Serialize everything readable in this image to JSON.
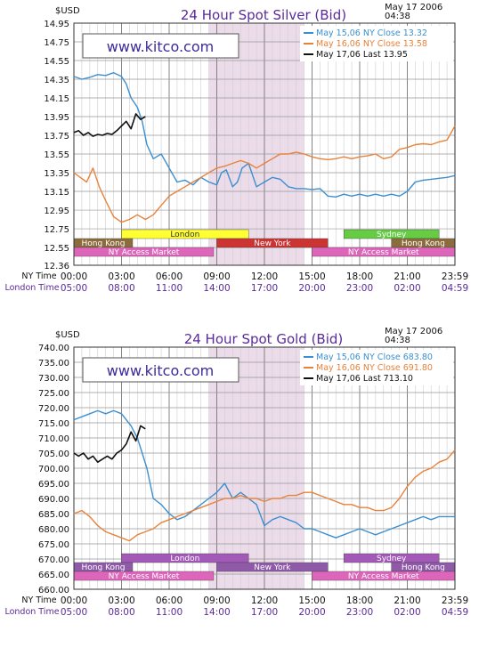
{
  "chart_data": [
    {
      "type": "line",
      "title": "24 Hour Spot Silver (Bid)",
      "date_stamp": "May 17 2006",
      "time_stamp": "04:38",
      "watermark": "www.kitco.com",
      "ylabel": "$USD",
      "ylim": [
        12.36,
        14.95
      ],
      "yticks": [
        "14.95",
        "14.75",
        "14.55",
        "14.35",
        "14.15",
        "13.95",
        "13.75",
        "13.55",
        "13.35",
        "13.15",
        "12.95",
        "12.75",
        "12.55",
        "12.36"
      ],
      "ytick_values": [
        14.95,
        14.75,
        14.55,
        14.35,
        14.15,
        13.95,
        13.75,
        13.55,
        13.35,
        13.15,
        12.95,
        12.75,
        12.55,
        12.36
      ],
      "x_axis_label_ny": "NY Time",
      "x_axis_label_london": "London Time",
      "xticks_ny": [
        "00:00",
        "03:00",
        "06:00",
        "09:00",
        "12:00",
        "15:00",
        "18:00",
        "21:00",
        "23:59"
      ],
      "xticks_london": [
        "05:00",
        "08:00",
        "11:00",
        "14:00",
        "17:00",
        "20:00",
        "23:00",
        "02:00",
        "04:59"
      ],
      "legend": [
        {
          "label": "May 15,06 NY Close 13.32",
          "color": "#3b8fd0"
        },
        {
          "label": "May 16,06 NY Close 13.58",
          "color": "#e8823a"
        },
        {
          "label": "May 17,06 Last 13.95",
          "color": "#111111"
        }
      ],
      "series": [
        {
          "name": "May 15,06",
          "color": "#3b8fd0",
          "x": [
            0,
            0.5,
            1,
            1.5,
            2,
            2.5,
            3,
            3.3,
            3.6,
            4,
            4.3,
            4.6,
            5,
            5.5,
            6,
            6.5,
            7,
            7.5,
            8,
            8.5,
            9,
            9.3,
            9.6,
            10,
            10.3,
            10.6,
            11,
            11.5,
            12,
            12.5,
            13,
            13.5,
            14,
            14.5,
            15,
            15.5,
            16,
            16.5,
            17,
            17.5,
            18,
            18.5,
            19,
            19.5,
            20,
            20.5,
            21,
            21.5,
            22,
            22.5,
            23,
            23.5,
            24
          ],
          "y": [
            14.38,
            14.35,
            14.37,
            14.4,
            14.39,
            14.42,
            14.38,
            14.3,
            14.15,
            14.05,
            13.9,
            13.65,
            13.5,
            13.55,
            13.4,
            13.25,
            13.27,
            13.22,
            13.3,
            13.25,
            13.22,
            13.35,
            13.38,
            13.2,
            13.25,
            13.4,
            13.45,
            13.2,
            13.25,
            13.3,
            13.28,
            13.2,
            13.18,
            13.18,
            13.17,
            13.18,
            13.1,
            13.09,
            13.12,
            13.1,
            13.12,
            13.1,
            13.12,
            13.1,
            13.12,
            13.1,
            13.15,
            13.25,
            13.27,
            13.28,
            13.29,
            13.3,
            13.32
          ]
        },
        {
          "name": "May 16,06",
          "color": "#e8823a",
          "x": [
            0,
            0.4,
            0.8,
            1.2,
            1.6,
            2,
            2.5,
            3,
            3.5,
            4,
            4.5,
            5,
            5.5,
            6,
            6.5,
            7,
            7.5,
            8,
            8.5,
            9,
            9.5,
            10,
            10.5,
            11,
            11.5,
            12,
            12.5,
            13,
            13.5,
            14,
            14.5,
            15,
            15.5,
            16,
            16.5,
            17,
            17.5,
            18,
            18.5,
            19,
            19.5,
            20,
            20.5,
            21,
            21.5,
            22,
            22.5,
            23,
            23.5,
            24
          ],
          "y": [
            13.35,
            13.3,
            13.25,
            13.4,
            13.2,
            13.05,
            12.88,
            12.82,
            12.85,
            12.9,
            12.85,
            12.9,
            13.0,
            13.1,
            13.15,
            13.2,
            13.25,
            13.3,
            13.35,
            13.4,
            13.42,
            13.45,
            13.48,
            13.45,
            13.4,
            13.45,
            13.5,
            13.55,
            13.55,
            13.57,
            13.55,
            13.52,
            13.5,
            13.49,
            13.5,
            13.52,
            13.5,
            13.52,
            13.53,
            13.55,
            13.5,
            13.52,
            13.6,
            13.62,
            13.65,
            13.66,
            13.65,
            13.68,
            13.7,
            13.85
          ]
        },
        {
          "name": "May 17,06",
          "color": "#111111",
          "x": [
            0,
            0.3,
            0.6,
            0.9,
            1.2,
            1.5,
            1.8,
            2.1,
            2.4,
            2.7,
            3.0,
            3.3,
            3.6,
            3.9,
            4.2,
            4.5
          ],
          "y": [
            13.78,
            13.8,
            13.75,
            13.78,
            13.74,
            13.76,
            13.75,
            13.77,
            13.76,
            13.8,
            13.85,
            13.9,
            13.82,
            13.98,
            13.92,
            13.95
          ]
        }
      ],
      "sessions": [
        {
          "label": "London",
          "start": 3.0,
          "end": 11.0,
          "row": 1,
          "color": "#ffff33"
        },
        {
          "label": "New York",
          "start": 9.0,
          "end": 16.0,
          "row": 2,
          "color": "#cc3333"
        },
        {
          "label": "Sydney",
          "start": 17.0,
          "end": 23.0,
          "row": 1,
          "color": "#66cc44"
        },
        {
          "label": "Hong Kong",
          "start": 0.0,
          "end": 3.7,
          "row": 2,
          "color": "#8c6b3c"
        },
        {
          "label": "Hong Kong",
          "start": 20.0,
          "end": 24.0,
          "row": 2,
          "color": "#8c6b3c"
        },
        {
          "label": "NY Access Market",
          "start": 0.0,
          "end": 8.8,
          "row": 3,
          "color": "#dd66bb"
        },
        {
          "label": "NY Access Market",
          "start": 15.0,
          "end": 24.0,
          "row": 3,
          "color": "#dd66bb"
        }
      ],
      "shaded_x": [
        8.5,
        14.5
      ]
    },
    {
      "type": "line",
      "title": "24 Hour Spot Gold (Bid)",
      "date_stamp": "May 17 2006",
      "time_stamp": "04:38",
      "watermark": "www.kitco.com",
      "ylabel": "$USD",
      "ylim": [
        660,
        740
      ],
      "yticks": [
        "740.00",
        "735.00",
        "730.00",
        "725.00",
        "720.00",
        "715.00",
        "710.00",
        "705.00",
        "700.00",
        "695.00",
        "690.00",
        "685.00",
        "680.00",
        "675.00",
        "670.00",
        "665.00",
        "660.00"
      ],
      "ytick_values": [
        740,
        735,
        730,
        725,
        720,
        715,
        710,
        705,
        700,
        695,
        690,
        685,
        680,
        675,
        670,
        665,
        660
      ],
      "x_axis_label_ny": "NY Time",
      "x_axis_label_london": "London Time",
      "xticks_ny": [
        "00:00",
        "03:00",
        "06:00",
        "09:00",
        "12:00",
        "15:00",
        "18:00",
        "21:00",
        "23:59"
      ],
      "xticks_london": [
        "05:00",
        "08:00",
        "11:00",
        "14:00",
        "17:00",
        "20:00",
        "23:00",
        "02:00",
        "04:59"
      ],
      "legend": [
        {
          "label": "May 15,06 NY Close 683.80",
          "color": "#3b8fd0"
        },
        {
          "label": "May 16,06 NY Close 691.80",
          "color": "#e8823a"
        },
        {
          "label": "May 17,06 Last 713.10",
          "color": "#111111"
        }
      ],
      "series": [
        {
          "name": "May 15,06",
          "color": "#3b8fd0",
          "x": [
            0,
            0.5,
            1,
            1.5,
            2,
            2.5,
            3,
            3.3,
            3.6,
            4,
            4.3,
            4.6,
            5,
            5.5,
            6,
            6.5,
            7,
            7.5,
            8,
            8.5,
            9,
            9.5,
            10,
            10.5,
            11,
            11.5,
            12,
            12.5,
            13,
            13.5,
            14,
            14.5,
            15,
            15.5,
            16,
            16.5,
            17,
            17.5,
            18,
            18.5,
            19,
            19.5,
            20,
            20.5,
            21,
            21.5,
            22,
            22.5,
            23,
            23.5,
            24
          ],
          "y": [
            716,
            717,
            718,
            719,
            718,
            719,
            718,
            716,
            714,
            710,
            705,
            700,
            690,
            688,
            685,
            683,
            684,
            686,
            688,
            690,
            692,
            695,
            690,
            692,
            690,
            688,
            681,
            683,
            684,
            683,
            682,
            680,
            680,
            679,
            678,
            677,
            678,
            679,
            680,
            679,
            678,
            679,
            680,
            681,
            682,
            683,
            684,
            683,
            684,
            684,
            684
          ]
        },
        {
          "name": "May 16,06",
          "color": "#e8823a",
          "x": [
            0,
            0.5,
            1,
            1.5,
            2,
            2.5,
            3,
            3.5,
            4,
            4.5,
            5,
            5.5,
            6,
            6.5,
            7,
            7.5,
            8,
            8.5,
            9,
            9.5,
            10,
            10.5,
            11,
            11.5,
            12,
            12.5,
            13,
            13.5,
            14,
            14.5,
            15,
            15.5,
            16,
            16.5,
            17,
            17.5,
            18,
            18.5,
            19,
            19.5,
            20,
            20.5,
            21,
            21.5,
            22,
            22.5,
            23,
            23.5,
            24
          ],
          "y": [
            685,
            686,
            684,
            681,
            679,
            678,
            677,
            676,
            678,
            679,
            680,
            682,
            683,
            684,
            685,
            686,
            687,
            688,
            689,
            690,
            690,
            691,
            690,
            690,
            689,
            690,
            690,
            691,
            691,
            692,
            692,
            691,
            690,
            689,
            688,
            688,
            687,
            687,
            686,
            686,
            687,
            690,
            694,
            697,
            699,
            700,
            702,
            703,
            706
          ]
        },
        {
          "name": "May 17,06",
          "color": "#111111",
          "x": [
            0,
            0.3,
            0.6,
            0.9,
            1.2,
            1.5,
            1.8,
            2.1,
            2.4,
            2.7,
            3.0,
            3.3,
            3.6,
            3.9,
            4.2,
            4.5
          ],
          "y": [
            705,
            704,
            705,
            703,
            704,
            702,
            703,
            704,
            703,
            705,
            706,
            708,
            712,
            709,
            714,
            713
          ]
        }
      ],
      "sessions": [
        {
          "label": "London",
          "start": 3.0,
          "end": 11.0,
          "row": 1,
          "color": "#a259b8"
        },
        {
          "label": "Sydney",
          "start": 17.0,
          "end": 23.0,
          "row": 1,
          "color": "#a259b8"
        },
        {
          "label": "Hong Kong",
          "start": 0.0,
          "end": 3.7,
          "row": 2,
          "color": "#8f5aa8"
        },
        {
          "label": "New York",
          "start": 9.0,
          "end": 16.0,
          "row": 2,
          "color": "#8f5aa8"
        },
        {
          "label": "Hong Kong",
          "start": 20.0,
          "end": 24.0,
          "row": 2,
          "color": "#8f5aa8"
        },
        {
          "label": "NY Access Market",
          "start": 0.0,
          "end": 8.8,
          "row": 3,
          "color": "#dd66bb"
        },
        {
          "label": "NY Access Market",
          "start": 15.0,
          "end": 24.0,
          "row": 3,
          "color": "#dd66bb"
        }
      ],
      "shaded_x": [
        8.5,
        14.5
      ]
    }
  ]
}
